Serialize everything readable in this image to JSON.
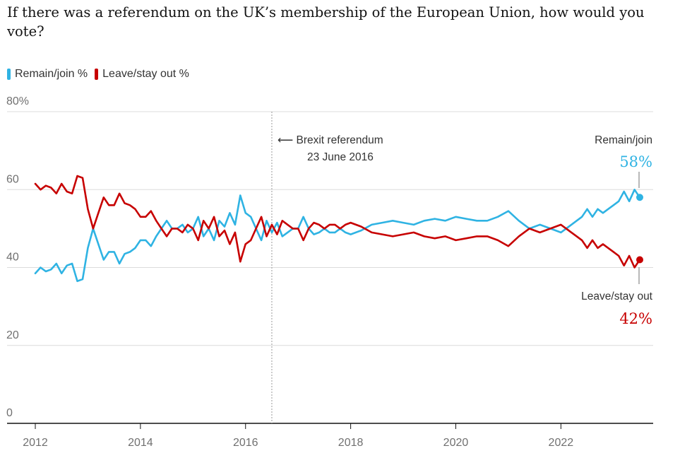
{
  "chart_data": {
    "type": "line",
    "title": "If there was a referendum on the UK’s membership of the European Union, how would you vote?",
    "ylim": [
      0,
      80
    ],
    "xlim": [
      2012,
      2023.5
    ],
    "y_ticks": [
      {
        "value": 80,
        "label": "80%"
      },
      {
        "value": 60,
        "label": "60"
      },
      {
        "value": 40,
        "label": "40"
      },
      {
        "value": 20,
        "label": "20"
      },
      {
        "value": 0,
        "label": "0"
      }
    ],
    "x_ticks": [
      {
        "value": 2012,
        "label": "2012"
      },
      {
        "value": 2014,
        "label": "2014"
      },
      {
        "value": 2016,
        "label": "2016"
      },
      {
        "value": 2018,
        "label": "2018"
      },
      {
        "value": 2020,
        "label": "2020"
      },
      {
        "value": 2022,
        "label": "2022"
      }
    ],
    "series": [
      {
        "name": "Remain/join %",
        "key": "remain",
        "color": "#2fb3e3",
        "points": [
          [
            2012.0,
            38.5
          ],
          [
            2012.1,
            40
          ],
          [
            2012.2,
            39
          ],
          [
            2012.3,
            39.5
          ],
          [
            2012.4,
            41
          ],
          [
            2012.5,
            38.5
          ],
          [
            2012.6,
            40.5
          ],
          [
            2012.7,
            41
          ],
          [
            2012.8,
            36.5
          ],
          [
            2012.9,
            37
          ],
          [
            2013.0,
            45
          ],
          [
            2013.1,
            50
          ],
          [
            2013.2,
            46
          ],
          [
            2013.3,
            42
          ],
          [
            2013.4,
            44
          ],
          [
            2013.5,
            44
          ],
          [
            2013.6,
            41
          ],
          [
            2013.7,
            43.5
          ],
          [
            2013.8,
            44
          ],
          [
            2013.9,
            45
          ],
          [
            2014.0,
            47
          ],
          [
            2014.1,
            47
          ],
          [
            2014.2,
            45.5
          ],
          [
            2014.3,
            48
          ],
          [
            2014.4,
            50
          ],
          [
            2014.5,
            52
          ],
          [
            2014.6,
            50
          ],
          [
            2014.7,
            50
          ],
          [
            2014.8,
            51
          ],
          [
            2014.9,
            49
          ],
          [
            2015.0,
            50
          ],
          [
            2015.1,
            53
          ],
          [
            2015.2,
            48
          ],
          [
            2015.3,
            50
          ],
          [
            2015.4,
            47
          ],
          [
            2015.5,
            52
          ],
          [
            2015.6,
            50.5
          ],
          [
            2015.7,
            54
          ],
          [
            2015.8,
            51
          ],
          [
            2015.9,
            58.5
          ],
          [
            2016.0,
            54
          ],
          [
            2016.1,
            53
          ],
          [
            2016.2,
            50
          ],
          [
            2016.3,
            47
          ],
          [
            2016.4,
            52
          ],
          [
            2016.5,
            49
          ],
          [
            2016.6,
            51.5
          ],
          [
            2016.7,
            48
          ],
          [
            2016.8,
            49
          ],
          [
            2016.9,
            50
          ],
          [
            2017.0,
            50
          ],
          [
            2017.1,
            53
          ],
          [
            2017.2,
            50
          ],
          [
            2017.3,
            48.5
          ],
          [
            2017.4,
            49
          ],
          [
            2017.5,
            50
          ],
          [
            2017.6,
            49
          ],
          [
            2017.7,
            49
          ],
          [
            2017.8,
            50
          ],
          [
            2017.9,
            49
          ],
          [
            2018.0,
            48.5
          ],
          [
            2018.2,
            49.5
          ],
          [
            2018.4,
            51
          ],
          [
            2018.6,
            51.5
          ],
          [
            2018.8,
            52
          ],
          [
            2019.0,
            51.5
          ],
          [
            2019.2,
            51
          ],
          [
            2019.4,
            52
          ],
          [
            2019.6,
            52.5
          ],
          [
            2019.8,
            52
          ],
          [
            2020.0,
            53
          ],
          [
            2020.2,
            52.5
          ],
          [
            2020.4,
            52
          ],
          [
            2020.6,
            52
          ],
          [
            2020.8,
            53
          ],
          [
            2021.0,
            54.5
          ],
          [
            2021.2,
            52
          ],
          [
            2021.4,
            50
          ],
          [
            2021.6,
            51
          ],
          [
            2021.8,
            50
          ],
          [
            2022.0,
            49
          ],
          [
            2022.1,
            50
          ],
          [
            2022.2,
            51
          ],
          [
            2022.3,
            52
          ],
          [
            2022.4,
            53
          ],
          [
            2022.5,
            55
          ],
          [
            2022.6,
            53
          ],
          [
            2022.7,
            55
          ],
          [
            2022.8,
            54
          ],
          [
            2022.9,
            55
          ],
          [
            2023.0,
            56
          ],
          [
            2023.1,
            57
          ],
          [
            2023.2,
            59.5
          ],
          [
            2023.3,
            57
          ],
          [
            2023.4,
            60
          ],
          [
            2023.5,
            58
          ]
        ],
        "end_label": "Remain/join",
        "end_value": "58%"
      },
      {
        "name": "Leave/stay out %",
        "key": "leave",
        "color": "#c70000",
        "points": [
          [
            2012.0,
            61.5
          ],
          [
            2012.1,
            60
          ],
          [
            2012.2,
            61
          ],
          [
            2012.3,
            60.5
          ],
          [
            2012.4,
            59
          ],
          [
            2012.5,
            61.5
          ],
          [
            2012.6,
            59.5
          ],
          [
            2012.7,
            59
          ],
          [
            2012.8,
            63.5
          ],
          [
            2012.9,
            63
          ],
          [
            2013.0,
            55
          ],
          [
            2013.1,
            50
          ],
          [
            2013.2,
            54
          ],
          [
            2013.3,
            58
          ],
          [
            2013.4,
            56
          ],
          [
            2013.5,
            56
          ],
          [
            2013.6,
            59
          ],
          [
            2013.7,
            56.5
          ],
          [
            2013.8,
            56
          ],
          [
            2013.9,
            55
          ],
          [
            2014.0,
            53
          ],
          [
            2014.1,
            53
          ],
          [
            2014.2,
            54.5
          ],
          [
            2014.3,
            52
          ],
          [
            2014.4,
            50
          ],
          [
            2014.5,
            48
          ],
          [
            2014.6,
            50
          ],
          [
            2014.7,
            50
          ],
          [
            2014.8,
            49
          ],
          [
            2014.9,
            51
          ],
          [
            2015.0,
            50
          ],
          [
            2015.1,
            47
          ],
          [
            2015.2,
            52
          ],
          [
            2015.3,
            50
          ],
          [
            2015.4,
            53
          ],
          [
            2015.5,
            48
          ],
          [
            2015.6,
            49.5
          ],
          [
            2015.7,
            46
          ],
          [
            2015.8,
            49
          ],
          [
            2015.9,
            41.5
          ],
          [
            2016.0,
            46
          ],
          [
            2016.1,
            47
          ],
          [
            2016.2,
            50
          ],
          [
            2016.3,
            53
          ],
          [
            2016.4,
            48
          ],
          [
            2016.5,
            51
          ],
          [
            2016.6,
            48.5
          ],
          [
            2016.7,
            52
          ],
          [
            2016.8,
            51
          ],
          [
            2016.9,
            50
          ],
          [
            2017.0,
            50
          ],
          [
            2017.1,
            47
          ],
          [
            2017.2,
            50
          ],
          [
            2017.3,
            51.5
          ],
          [
            2017.4,
            51
          ],
          [
            2017.5,
            50
          ],
          [
            2017.6,
            51
          ],
          [
            2017.7,
            51
          ],
          [
            2017.8,
            50
          ],
          [
            2017.9,
            51
          ],
          [
            2018.0,
            51.5
          ],
          [
            2018.2,
            50.5
          ],
          [
            2018.4,
            49
          ],
          [
            2018.6,
            48.5
          ],
          [
            2018.8,
            48
          ],
          [
            2019.0,
            48.5
          ],
          [
            2019.2,
            49
          ],
          [
            2019.4,
            48
          ],
          [
            2019.6,
            47.5
          ],
          [
            2019.8,
            48
          ],
          [
            2020.0,
            47
          ],
          [
            2020.2,
            47.5
          ],
          [
            2020.4,
            48
          ],
          [
            2020.6,
            48
          ],
          [
            2020.8,
            47
          ],
          [
            2021.0,
            45.5
          ],
          [
            2021.2,
            48
          ],
          [
            2021.4,
            50
          ],
          [
            2021.6,
            49
          ],
          [
            2021.8,
            50
          ],
          [
            2022.0,
            51
          ],
          [
            2022.1,
            50
          ],
          [
            2022.2,
            49
          ],
          [
            2022.3,
            48
          ],
          [
            2022.4,
            47
          ],
          [
            2022.5,
            45
          ],
          [
            2022.6,
            47
          ],
          [
            2022.7,
            45
          ],
          [
            2022.8,
            46
          ],
          [
            2022.9,
            45
          ],
          [
            2023.0,
            44
          ],
          [
            2023.1,
            43
          ],
          [
            2023.2,
            40.5
          ],
          [
            2023.3,
            43
          ],
          [
            2023.4,
            40
          ],
          [
            2023.5,
            42
          ]
        ],
        "end_label": "Leave/stay out",
        "end_value": "42%"
      }
    ],
    "annotations": [
      {
        "x": 2016.5,
        "label_line1": "⟵ Brexit referendum",
        "label_line2": "23 June 2016"
      }
    ]
  }
}
